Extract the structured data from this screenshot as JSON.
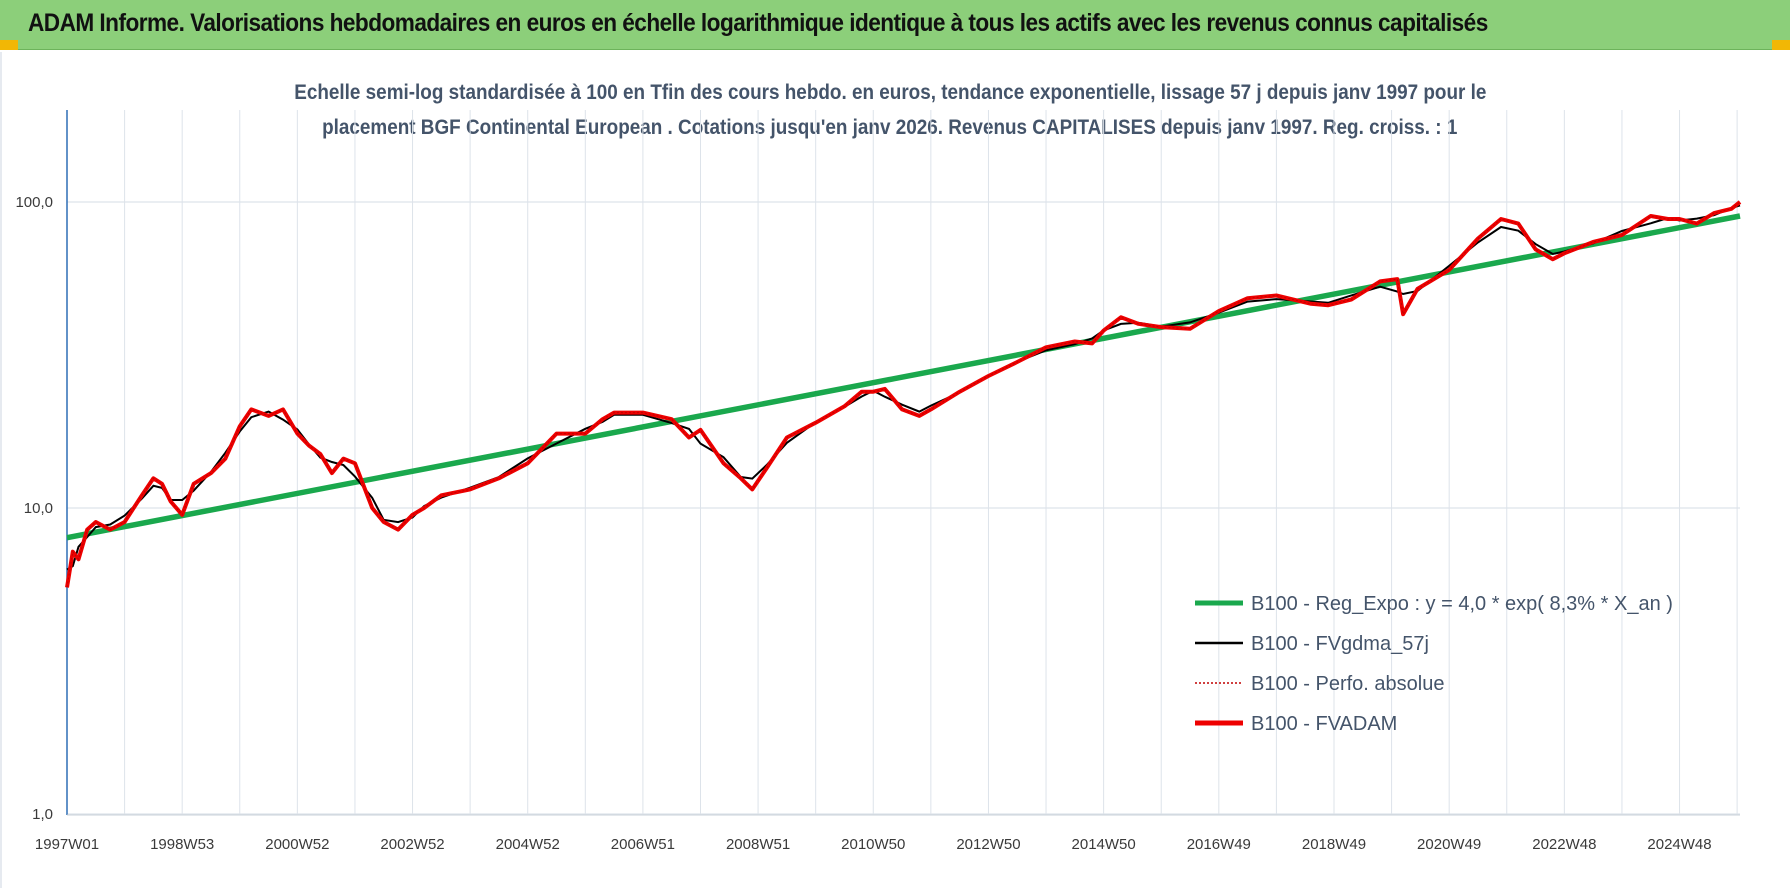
{
  "header": {
    "title": "ADAM Informe. Valorisations hebdomadaires en euros en échelle logarithmique identique à tous les actifs avec les revenus connus capitalisés"
  },
  "colors": {
    "header_bg": "#8ccf7a",
    "corner_accent": "#f2b705",
    "regression": "#1aa84d",
    "moving_average": "#000000",
    "perfo_absolue": "#c00000",
    "fvadam": "#ee0000"
  },
  "chart_data": {
    "type": "line",
    "title_line1": "Echelle semi-log standardisée à 100 en Tfin des cours hebdo. en euros, tendance exponentielle, lissage 57 j depuis janv 1997 pour le",
    "title_line2": "placement BGF Continental European . Cotations jusqu'en janv 2026. Revenus CAPITALISES depuis janv 1997. Reg. croiss. : 1",
    "y_scale": "log",
    "ylim": [
      1,
      200
    ],
    "y_ticks": [
      1,
      10,
      100
    ],
    "y_tick_labels": [
      "1,0",
      "10,0",
      "100,0"
    ],
    "x_range": [
      1997.0,
      2026.05
    ],
    "x_ticks": [
      1997.0,
      1999.0,
      2001.0,
      2003.0,
      2005.0,
      2007.0,
      2009.0,
      2011.0,
      2013.0,
      2015.0,
      2017.0,
      2019.0,
      2021.0,
      2023.0,
      2025.0
    ],
    "x_tick_labels": [
      "1997W01",
      "1998W53",
      "2000W52",
      "2002W52",
      "2004W52",
      "2006W51",
      "2008W51",
      "2010W50",
      "2012W50",
      "2014W50",
      "2016W49",
      "2018W49",
      "2020W49",
      "2022W48",
      "2024W48"
    ],
    "grid": true,
    "legend_position": "bottom-right",
    "series": [
      {
        "name": "B100 - Reg_Expo : y = 4,0 * exp( 8,3% *  X_an )",
        "color": "#1aa84d",
        "style": "thick",
        "x": [
          1997.0,
          2026.05
        ],
        "y": [
          8.0,
          90.0
        ]
      },
      {
        "name": "B100 - FVgdma_57j",
        "color": "#000000",
        "style": "thin"
      },
      {
        "name": "B100 - Perfo. absolue",
        "color": "#c00000",
        "style": "dotted"
      },
      {
        "name": "B100 - FVADAM",
        "color": "#ee0000",
        "style": "thick",
        "x": [
          1997.0,
          1997.1,
          1997.2,
          1997.35,
          1997.5,
          1997.75,
          1998.0,
          1998.3,
          1998.5,
          1998.65,
          1998.8,
          1999.0,
          1999.2,
          1999.5,
          1999.75,
          2000.0,
          2000.2,
          2000.5,
          2000.75,
          2001.0,
          2001.2,
          2001.4,
          2001.6,
          2001.8,
          2002.0,
          2002.3,
          2002.5,
          2002.75,
          2003.0,
          2003.2,
          2003.5,
          2004.0,
          2004.5,
          2005.0,
          2005.5,
          2006.0,
          2006.3,
          2006.5,
          2007.0,
          2007.5,
          2007.8,
          2008.0,
          2008.4,
          2008.7,
          2008.9,
          2009.15,
          2009.5,
          2010.0,
          2010.5,
          2010.8,
          2011.0,
          2011.2,
          2011.5,
          2011.8,
          2012.0,
          2012.5,
          2013.0,
          2013.5,
          2014.0,
          2014.5,
          2014.8,
          2015.0,
          2015.3,
          2015.6,
          2016.0,
          2016.5,
          2017.0,
          2017.5,
          2018.0,
          2018.6,
          2018.9,
          2019.3,
          2019.8,
          2020.1,
          2020.2,
          2020.45,
          2021.0,
          2021.5,
          2021.9,
          2022.2,
          2022.5,
          2022.8,
          2023.0,
          2023.5,
          2024.0,
          2024.5,
          2024.8,
          2025.0,
          2025.3,
          2025.6,
          2025.9,
          2026.05
        ],
        "y": [
          5.5,
          7.2,
          6.8,
          8.5,
          9.0,
          8.5,
          9.0,
          11.0,
          12.5,
          12.0,
          10.5,
          9.5,
          12.0,
          13.0,
          14.5,
          18.5,
          21.0,
          20.0,
          21.0,
          17.5,
          16.0,
          15.0,
          13.0,
          14.5,
          14.0,
          10.0,
          9.0,
          8.5,
          9.5,
          10.0,
          11.0,
          11.5,
          12.5,
          14.0,
          17.5,
          17.5,
          19.5,
          20.5,
          20.5,
          19.5,
          17.0,
          18.0,
          14.0,
          12.5,
          11.5,
          13.5,
          17.0,
          19.0,
          21.5,
          24.0,
          24.0,
          24.5,
          21.0,
          20.0,
          21.0,
          24.0,
          27.0,
          30.0,
          33.5,
          35.0,
          34.5,
          38.0,
          42.0,
          40.0,
          39.0,
          38.5,
          44.0,
          48.5,
          49.5,
          46.5,
          46.0,
          48.0,
          55.0,
          56.0,
          43.0,
          52.0,
          60.0,
          76.0,
          88.0,
          85.0,
          70.0,
          65.0,
          68.0,
          74.0,
          78.0,
          90.0,
          88.0,
          88.0,
          85.0,
          92.0,
          95.0,
          100.0
        ]
      }
    ]
  }
}
